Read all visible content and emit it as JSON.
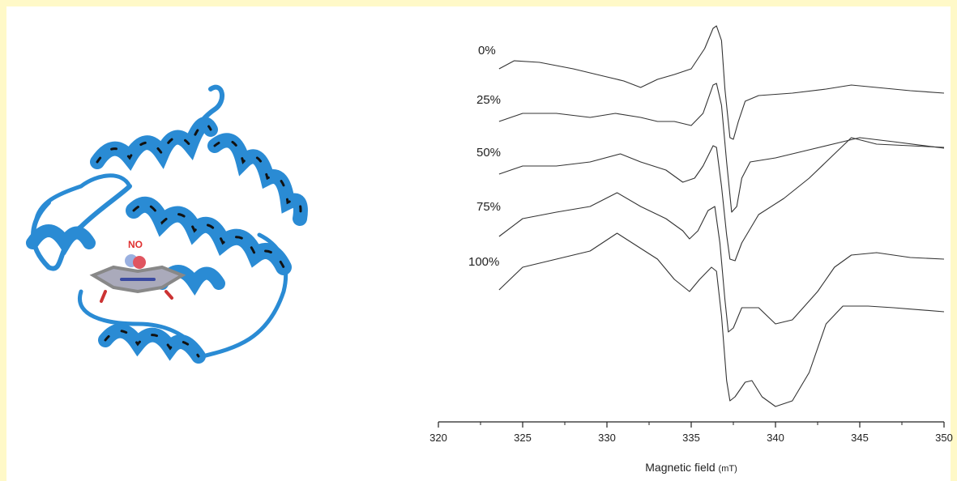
{
  "chart_data": {
    "type": "line",
    "x_label": "Magnetic field",
    "x_unit": "(mT)",
    "xlim": [
      320,
      350
    ],
    "xticks": [
      320,
      325,
      330,
      335,
      340,
      345,
      350
    ],
    "xminorticks": [
      322.5,
      327.5,
      332.5,
      337.5,
      342.5,
      347.5
    ],
    "ylim": [
      0,
      500
    ],
    "series": [
      {
        "name": "0%",
        "color": "#333333",
        "x": [
          323.6,
          324.5,
          326,
          328,
          330,
          331,
          332,
          333,
          334,
          335,
          335.8,
          336.3,
          336.5,
          336.8,
          337,
          337.3,
          337.5,
          337.8,
          338.2,
          339,
          341,
          343,
          344.5,
          346,
          348,
          350
        ],
        "values": [
          425,
          435,
          433,
          425,
          415,
          410,
          402,
          412,
          418,
          425,
          450,
          475,
          478,
          460,
          400,
          340,
          338,
          360,
          385,
          392,
          395,
          400,
          405,
          402,
          398,
          395
        ]
      },
      {
        "name": "25%",
        "color": "#333333",
        "x": [
          323.6,
          325,
          327,
          329,
          330.5,
          332,
          333,
          334,
          335,
          335.7,
          336.3,
          336.5,
          336.8,
          337.1,
          337.4,
          337.7,
          338,
          338.5,
          340,
          342,
          344,
          345,
          347,
          350
        ],
        "values": [
          360,
          370,
          370,
          365,
          370,
          365,
          360,
          360,
          355,
          370,
          405,
          407,
          380,
          310,
          248,
          255,
          290,
          310,
          315,
          325,
          335,
          340,
          335,
          327
        ]
      },
      {
        "name": "50%",
        "color": "#333333",
        "x": [
          323.6,
          325,
          327,
          329,
          330.8,
          332,
          333.5,
          334.5,
          335.2,
          335.7,
          336.3,
          336.5,
          336.8,
          337.1,
          337.3,
          337.6,
          338,
          339,
          340.5,
          342,
          343,
          344.5,
          346,
          348,
          350
        ],
        "values": [
          295,
          305,
          305,
          310,
          320,
          310,
          300,
          285,
          290,
          305,
          330,
          328,
          280,
          220,
          190,
          188,
          210,
          245,
          265,
          290,
          310,
          340,
          332,
          330,
          328
        ]
      },
      {
        "name": "75%",
        "color": "#333333",
        "x": [
          323.6,
          325,
          327,
          329,
          330.6,
          332,
          333.5,
          334.5,
          334.9,
          335.4,
          336,
          336.4,
          336.7,
          337,
          337.2,
          337.5,
          338,
          339,
          340,
          341,
          342.5,
          343.5,
          344.5,
          346,
          348,
          350
        ],
        "values": [
          218,
          240,
          248,
          255,
          272,
          255,
          240,
          225,
          215,
          225,
          250,
          255,
          210,
          140,
          100,
          105,
          130,
          130,
          110,
          115,
          150,
          180,
          195,
          198,
          192,
          190
        ]
      },
      {
        "name": "100%",
        "color": "#333333",
        "x": [
          323.6,
          325,
          327,
          329,
          330.6,
          331.5,
          333,
          334,
          334.9,
          335.5,
          336.2,
          336.5,
          336.8,
          337.1,
          337.3,
          337.6,
          338.2,
          338.6,
          339.2,
          340,
          341,
          342,
          343,
          344,
          345.5,
          347,
          350
        ],
        "values": [
          152,
          180,
          190,
          200,
          222,
          210,
          190,
          165,
          150,
          165,
          180,
          175,
          120,
          40,
          15,
          20,
          38,
          40,
          20,
          8,
          15,
          50,
          110,
          132,
          132,
          130,
          125
        ]
      }
    ]
  },
  "structure": {
    "label": "NO"
  }
}
